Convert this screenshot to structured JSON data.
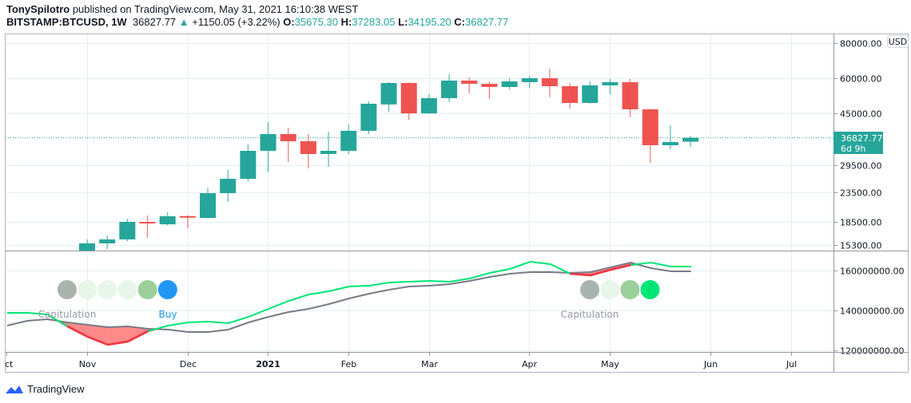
{
  "header": {
    "author": "TonySpilotro",
    "published": "published on TradingView.com, May 31, 2021 16:10:38 WEST",
    "symbol": "BITSTAMP:BTCUSD, 1W",
    "last": "36827.77",
    "change": "+1150.05 (+3.22%)",
    "o_label": "O:",
    "o": "35675.30",
    "h_label": "H:",
    "h": "37283.05",
    "l_label": "L:",
    "l": "34195.20",
    "c_label": "C:",
    "c": "36827.77"
  },
  "currency_badge": "USD",
  "price_label": {
    "value": "36827.77",
    "countdown": "6d 9h"
  },
  "logo": "TradingView",
  "colors": {
    "up": "#26a69a",
    "down": "#ef5350",
    "line_fast": "#00e676",
    "line_slow": "#787b86",
    "buy": "#2196f3",
    "grid": "#e6eef3"
  },
  "chart_data": [
    {
      "type": "candlestick",
      "y_scale": "log",
      "ylim": [
        14000,
        80000
      ],
      "y_ticks": [
        "80000.00",
        "60000.00",
        "45000.00",
        "29500.00",
        "23500.00",
        "18500.00",
        "15300.00"
      ],
      "x_ticks": [
        "ct",
        "Nov",
        "Dec",
        "2021",
        "Feb",
        "Mar",
        "Apr",
        "May",
        "Jun",
        "Jul"
      ],
      "ohlc": [
        [
          14530,
          16020,
          14000,
          15510
        ],
        [
          15510,
          16560,
          14810,
          16020
        ],
        [
          16020,
          19000,
          15800,
          18510
        ],
        [
          18500,
          19500,
          16240,
          18300
        ],
        [
          18130,
          20010,
          18000,
          19370
        ],
        [
          19400,
          19500,
          17560,
          19200
        ],
        [
          19100,
          24350,
          19000,
          23400
        ],
        [
          23400,
          28300,
          21780,
          26330
        ],
        [
          26330,
          34870,
          25830,
          33100
        ],
        [
          33100,
          41880,
          27750,
          37970
        ],
        [
          37970,
          40000,
          30200,
          35810
        ],
        [
          35810,
          38000,
          28670,
          32250
        ],
        [
          32250,
          38700,
          29040,
          33100
        ],
        [
          33100,
          41070,
          32250,
          39000
        ],
        [
          39000,
          49640,
          37970,
          48680
        ],
        [
          48400,
          58100,
          45600,
          57690
        ],
        [
          57690,
          58000,
          42700,
          45000
        ],
        [
          45000,
          52650,
          44800,
          50950
        ],
        [
          50950,
          61990,
          49300,
          58840
        ],
        [
          58840,
          60400,
          53000,
          57300
        ],
        [
          57300,
          58440,
          50600,
          55840
        ],
        [
          55840,
          60000,
          54750,
          58440
        ],
        [
          58100,
          61200,
          55200,
          60000
        ],
        [
          60000,
          64900,
          51300,
          56200
        ],
        [
          56200,
          57700,
          46800,
          49000
        ],
        [
          49000,
          58440,
          48700,
          56570
        ],
        [
          56570,
          59600,
          52650,
          58100
        ],
        [
          58100,
          59600,
          43560,
          46500
        ],
        [
          46500,
          46700,
          30000,
          34650
        ],
        [
          34650,
          40800,
          33530,
          35570
        ],
        [
          35675.3,
          37283.05,
          34195.2,
          36827.77
        ]
      ]
    },
    {
      "type": "line",
      "ylim": [
        118000000,
        168000000
      ],
      "y_ticks": [
        "160000000.00",
        "140000000.00",
        "120000000.00"
      ],
      "series": [
        {
          "color": "#00e676",
          "values": [
            138.8,
            138.8,
            138.0,
            132.0,
            126.8,
            122.8,
            124.4,
            129.6,
            132.4,
            134.0,
            134.4,
            133.6,
            136.8,
            140.8,
            144.8,
            148.0,
            149.6,
            152.0,
            152.4,
            154.0,
            154.4,
            154.8,
            154.4,
            156.0,
            158.8,
            160.8,
            164.4,
            163.2,
            158.4,
            157.6,
            160.4,
            162.8,
            164.0,
            162.0,
            162.0
          ]
        },
        {
          "color": "#787b86",
          "values": [
            132.4,
            134.8,
            135.6,
            134.0,
            132.8,
            131.6,
            132.0,
            130.8,
            130.4,
            129.2,
            129.2,
            130.4,
            134.0,
            136.8,
            139.2,
            140.8,
            143.2,
            146.0,
            148.4,
            150.4,
            152.0,
            152.4,
            153.2,
            154.8,
            156.8,
            158.4,
            159.2,
            159.2,
            158.8,
            159.2,
            161.6,
            164.0,
            161.2,
            159.6,
            159.6
          ]
        }
      ],
      "value_unit_multiplier": 1000000,
      "signals": [
        {
          "label": "Capitulation",
          "dots": [
            "#aab4ae",
            "#e8f5e9",
            "#e8f5e9",
            "#e8f5e9",
            "#9ccf9a",
            "#2196f3"
          ],
          "buy_label": "Buy"
        },
        {
          "label": "Capitulation",
          "dots": [
            "#aab4ae",
            "#e8f5e9",
            "#9ccf9a",
            "#00e676"
          ]
        }
      ]
    }
  ]
}
